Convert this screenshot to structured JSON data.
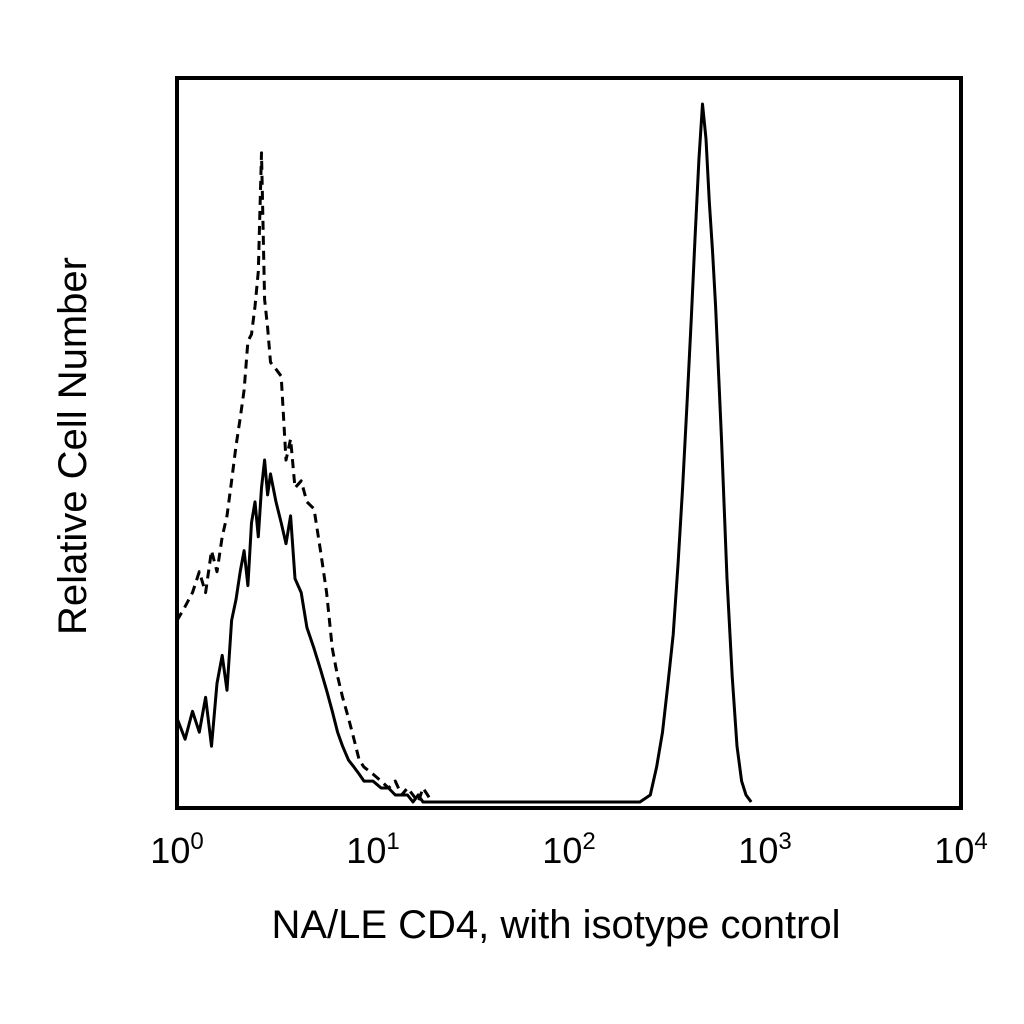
{
  "chart_data": {
    "type": "line",
    "title": "",
    "xlabel": "NA/LE CD4, with isotype control",
    "ylabel": "Relative Cell Number",
    "x_scale": "log",
    "xlim": [
      1,
      10000
    ],
    "ylim": [
      0,
      1
    ],
    "grid": false,
    "legend": "none",
    "x_ticks": [
      {
        "value": 1,
        "base": "10",
        "exp": "0"
      },
      {
        "value": 10,
        "base": "10",
        "exp": "1"
      },
      {
        "value": 100,
        "base": "10",
        "exp": "2"
      },
      {
        "value": 1000,
        "base": "10",
        "exp": "3"
      },
      {
        "value": 10000,
        "base": "10",
        "exp": "4"
      }
    ],
    "series": [
      {
        "style": "dashed",
        "color": "#000000",
        "x": [
          1.0,
          1.1,
          1.2,
          1.3,
          1.4,
          1.5,
          1.6,
          1.7,
          1.8,
          1.9,
          2.0,
          2.1,
          2.2,
          2.3,
          2.4,
          2.5,
          2.6,
          2.7,
          2.8,
          2.9,
          3.0,
          3.2,
          3.4,
          3.6,
          3.8,
          4.0,
          4.3,
          4.6,
          5.0,
          5.4,
          5.8,
          6.2,
          6.6,
          7.0,
          7.5,
          8.0,
          8.5,
          9.0,
          10,
          11,
          12,
          13,
          14,
          15,
          16,
          17,
          18,
          19,
          20
        ],
        "y": [
          0.26,
          0.28,
          0.3,
          0.33,
          0.3,
          0.36,
          0.33,
          0.38,
          0.41,
          0.46,
          0.51,
          0.55,
          0.59,
          0.66,
          0.67,
          0.71,
          0.76,
          0.93,
          0.72,
          0.68,
          0.63,
          0.62,
          0.61,
          0.49,
          0.52,
          0.45,
          0.46,
          0.43,
          0.42,
          0.36,
          0.3,
          0.22,
          0.18,
          0.15,
          0.12,
          0.09,
          0.06,
          0.05,
          0.04,
          0.03,
          0.02,
          0.03,
          0.01,
          0.02,
          0.01,
          0.0,
          0.02,
          0.01,
          0.0
        ]
      },
      {
        "style": "solid",
        "color": "#000000",
        "x": [
          1.0,
          1.1,
          1.2,
          1.3,
          1.4,
          1.5,
          1.6,
          1.7,
          1.8,
          1.9,
          2.0,
          2.1,
          2.2,
          2.3,
          2.4,
          2.5,
          2.6,
          2.7,
          2.8,
          2.9,
          3.0,
          3.2,
          3.4,
          3.6,
          3.8,
          4.0,
          4.3,
          4.6,
          5.0,
          5.4,
          5.8,
          6.2,
          6.6,
          7.0,
          7.5,
          8.0,
          8.5,
          9.0,
          10,
          11,
          12,
          13,
          14,
          15,
          16,
          17,
          18,
          19,
          20,
          22,
          25,
          30,
          35,
          40,
          50,
          60,
          80,
          100,
          130,
          160,
          200,
          230,
          260,
          280,
          300,
          320,
          340,
          360,
          380,
          400,
          420,
          440,
          460,
          480,
          500,
          520,
          540,
          560,
          600,
          640,
          680,
          720,
          760,
          800,
          850
        ],
        "y": [
          0.12,
          0.09,
          0.13,
          0.1,
          0.15,
          0.08,
          0.17,
          0.21,
          0.16,
          0.26,
          0.29,
          0.33,
          0.36,
          0.31,
          0.4,
          0.43,
          0.38,
          0.45,
          0.49,
          0.44,
          0.47,
          0.43,
          0.4,
          0.37,
          0.41,
          0.32,
          0.3,
          0.25,
          0.22,
          0.19,
          0.16,
          0.13,
          0.1,
          0.08,
          0.06,
          0.05,
          0.04,
          0.03,
          0.03,
          0.02,
          0.02,
          0.01,
          0.01,
          0.01,
          0.0,
          0.01,
          0.0,
          0.0,
          0.0,
          0.0,
          0.0,
          0.0,
          0.0,
          0.0,
          0.0,
          0.0,
          0.0,
          0.0,
          0.0,
          0.0,
          0.0,
          0.0,
          0.01,
          0.05,
          0.1,
          0.17,
          0.24,
          0.34,
          0.45,
          0.57,
          0.69,
          0.81,
          0.92,
          1.0,
          0.95,
          0.86,
          0.79,
          0.71,
          0.52,
          0.32,
          0.18,
          0.08,
          0.03,
          0.01,
          0.0
        ]
      }
    ]
  }
}
